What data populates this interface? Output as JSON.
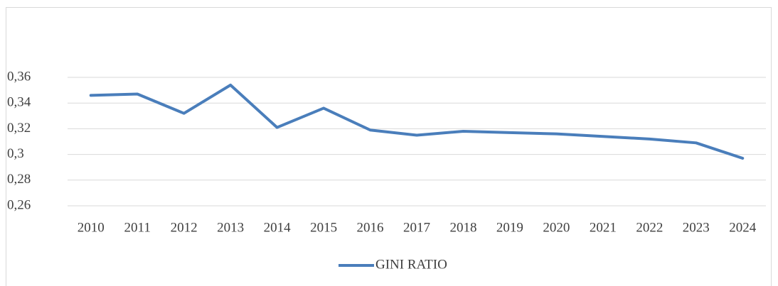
{
  "chart_data": {
    "type": "line",
    "categories": [
      "2010",
      "2011",
      "2012",
      "2013",
      "2014",
      "2015",
      "2016",
      "2017",
      "2018",
      "2019",
      "2020",
      "2021",
      "2022",
      "2023",
      "2024"
    ],
    "series": [
      {
        "name": "GINI RATIO",
        "color": "#4a7ebb",
        "values": [
          0.346,
          0.347,
          0.332,
          0.354,
          0.321,
          0.336,
          0.319,
          0.315,
          0.318,
          0.317,
          0.316,
          0.314,
          0.312,
          0.309,
          0.297
        ]
      }
    ],
    "ylim": [
      0.26,
      0.36
    ],
    "yticks": [
      {
        "value": 0.26,
        "label": "0,26"
      },
      {
        "value": 0.28,
        "label": "0,28"
      },
      {
        "value": 0.3,
        "label": "0,3"
      },
      {
        "value": 0.32,
        "label": "0,32"
      },
      {
        "value": 0.34,
        "label": "0,34"
      },
      {
        "value": 0.36,
        "label": "0,36"
      }
    ],
    "grid": true,
    "legend": "bottom"
  }
}
